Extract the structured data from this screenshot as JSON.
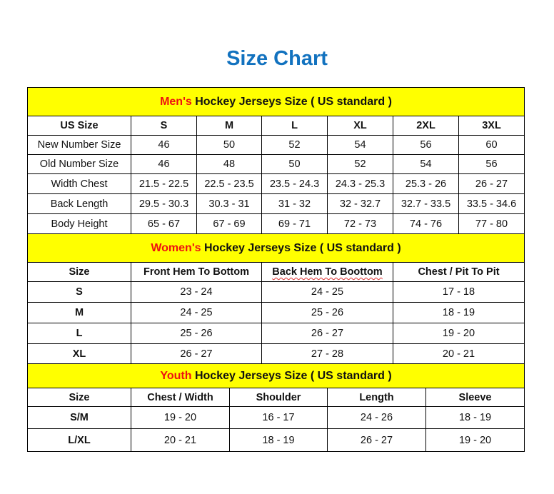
{
  "title": "Size Chart",
  "colors": {
    "title": "#1272bf",
    "band": "#ffff00",
    "highlight": "#ee1111"
  },
  "mens": {
    "heading_highlight": "Men's",
    "heading_rest": " Hockey Jerseys Size ( US standard )",
    "headers": [
      "US Size",
      "S",
      "M",
      "L",
      "XL",
      "2XL",
      "3XL"
    ],
    "rows": [
      [
        "New Number Size",
        "46",
        "50",
        "52",
        "54",
        "56",
        "60"
      ],
      [
        "Old Number Size",
        "46",
        "48",
        "50",
        "52",
        "54",
        "56"
      ],
      [
        "Width Chest",
        "21.5 - 22.5",
        "22.5 - 23.5",
        "23.5 - 24.3",
        "24.3 - 25.3",
        "25.3 - 26",
        "26 - 27"
      ],
      [
        "Back Length",
        "29.5 - 30.3",
        "30.3 - 31",
        "31 - 32",
        "32 - 32.7",
        "32.7 - 33.5",
        "33.5 - 34.6"
      ],
      [
        "Body Height",
        "65 - 67",
        "67 - 69",
        "69 - 71",
        "72 - 73",
        "74 - 76",
        "77 - 80"
      ]
    ]
  },
  "womens": {
    "heading_highlight": "Women's",
    "heading_rest": " Hockey Jerseys Size ( US standard )",
    "headers": [
      "Size",
      "Front Hem To Bottom",
      "Back Hem To Boottom",
      "Chest / Pit To Pit"
    ],
    "rows": [
      [
        "S",
        "23 - 24",
        "24 - 25",
        "17 - 18"
      ],
      [
        "M",
        "24 - 25",
        "25 - 26",
        "18 - 19"
      ],
      [
        "L",
        "25 - 26",
        "26 - 27",
        "19 - 20"
      ],
      [
        "XL",
        "26 - 27",
        "27 - 28",
        "20 - 21"
      ]
    ]
  },
  "youth": {
    "heading_highlight": "Youth",
    "heading_rest": " Hockey Jerseys Size ( US standard )",
    "headers": [
      "Size",
      "Chest / Width",
      "Shoulder",
      "Length",
      "Sleeve"
    ],
    "rows": [
      [
        "S/M",
        "19 - 20",
        "16 - 17",
        "24 - 26",
        "18 - 19"
      ],
      [
        "L/XL",
        "20 - 21",
        "18 - 19",
        "26 - 27",
        "19 - 20"
      ]
    ]
  }
}
